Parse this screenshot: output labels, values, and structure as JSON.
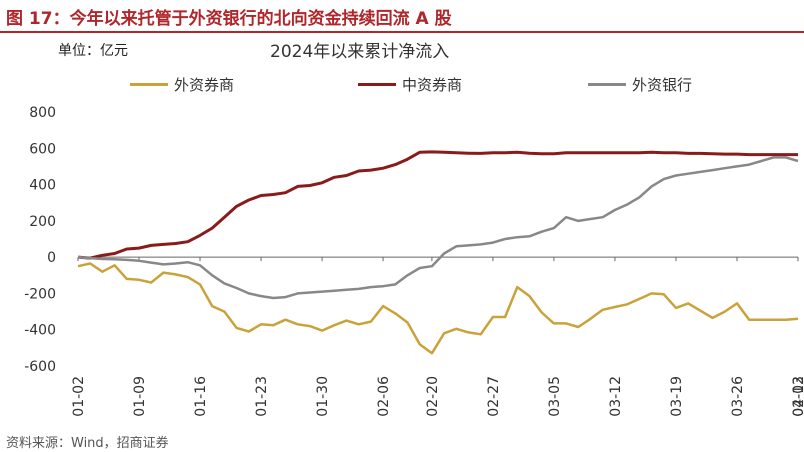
{
  "figure": {
    "title": "图 17：今年以来托管于外资银行的北向资金持续回流 A 股",
    "unit": "单位：亿元",
    "source": "资料来源：Wind，招商证券"
  },
  "chart_data": {
    "type": "line",
    "title": "2024年以来累计净流入",
    "ylim": [
      -600,
      800
    ],
    "yticks": [
      -600,
      -400,
      -200,
      0,
      200,
      400,
      600,
      800
    ],
    "grid": false,
    "legend": "top",
    "x_tick_labels": [
      "01-02",
      "01-09",
      "01-16",
      "01-23",
      "01-30",
      "02-06",
      "02-13",
      "02-20",
      "02-27",
      "03-05",
      "03-12",
      "03-19",
      "03-26",
      "04-02"
    ],
    "x": [
      "01-02",
      "01-03",
      "01-04",
      "01-05",
      "01-08",
      "01-09",
      "01-10",
      "01-11",
      "01-12",
      "01-15",
      "01-16",
      "01-17",
      "01-18",
      "01-19",
      "01-22",
      "01-23",
      "01-24",
      "01-25",
      "01-26",
      "01-29",
      "01-30",
      "01-31",
      "02-01",
      "02-02",
      "02-05",
      "02-06",
      "02-07",
      "02-08",
      "02-19",
      "02-20",
      "02-21",
      "02-22",
      "02-23",
      "02-26",
      "02-27",
      "02-28",
      "02-29",
      "03-01",
      "03-04",
      "03-05",
      "03-06",
      "03-07",
      "03-08",
      "03-11",
      "03-12",
      "03-13",
      "03-14",
      "03-15",
      "03-18",
      "03-19",
      "03-20",
      "03-21",
      "03-22",
      "03-25",
      "03-26",
      "03-27",
      "03-28",
      "03-29",
      "04-01",
      "04-02"
    ],
    "series": [
      {
        "name": "外资券商",
        "color": "#c9a33a",
        "values": [
          -50,
          -35,
          -80,
          -45,
          -120,
          -125,
          -140,
          -85,
          -95,
          -110,
          -150,
          -270,
          -300,
          -390,
          -410,
          -370,
          -375,
          -345,
          -370,
          -380,
          -405,
          -375,
          -350,
          -370,
          -355,
          -270,
          -310,
          -360,
          -480,
          -530,
          -420,
          -395,
          -415,
          -425,
          -330,
          -330,
          -165,
          -215,
          -305,
          -365,
          -365,
          -385,
          -340,
          -290,
          -275,
          -260,
          -230,
          -200,
          -205,
          -280,
          -255,
          -295,
          -335,
          -300,
          -255,
          -345,
          -345,
          -345,
          -345,
          -340
        ]
      },
      {
        "name": "中资券商",
        "color": "#8b1a1a",
        "values": [
          0,
          -5,
          10,
          20,
          45,
          50,
          65,
          70,
          75,
          85,
          120,
          160,
          220,
          280,
          315,
          340,
          345,
          355,
          390,
          395,
          410,
          440,
          450,
          475,
          480,
          490,
          510,
          540,
          578,
          580,
          578,
          575,
          573,
          572,
          575,
          575,
          578,
          573,
          570,
          570,
          575,
          575,
          575,
          575,
          575,
          575,
          575,
          578,
          575,
          575,
          572,
          572,
          570,
          568,
          568,
          565,
          565,
          565,
          565,
          565
        ]
      },
      {
        "name": "外资银行",
        "color": "#888888",
        "values": [
          0,
          -5,
          -10,
          -12,
          -15,
          -20,
          -30,
          -40,
          -35,
          -28,
          -45,
          -100,
          -145,
          -170,
          -200,
          -215,
          -225,
          -220,
          -200,
          -195,
          -190,
          -185,
          -180,
          -175,
          -165,
          -160,
          -150,
          -100,
          -60,
          -50,
          20,
          60,
          65,
          70,
          80,
          100,
          110,
          115,
          140,
          160,
          220,
          200,
          210,
          220,
          260,
          290,
          330,
          390,
          430,
          450,
          460,
          470,
          480,
          490,
          500,
          510,
          530,
          550,
          550,
          530
        ]
      }
    ]
  }
}
